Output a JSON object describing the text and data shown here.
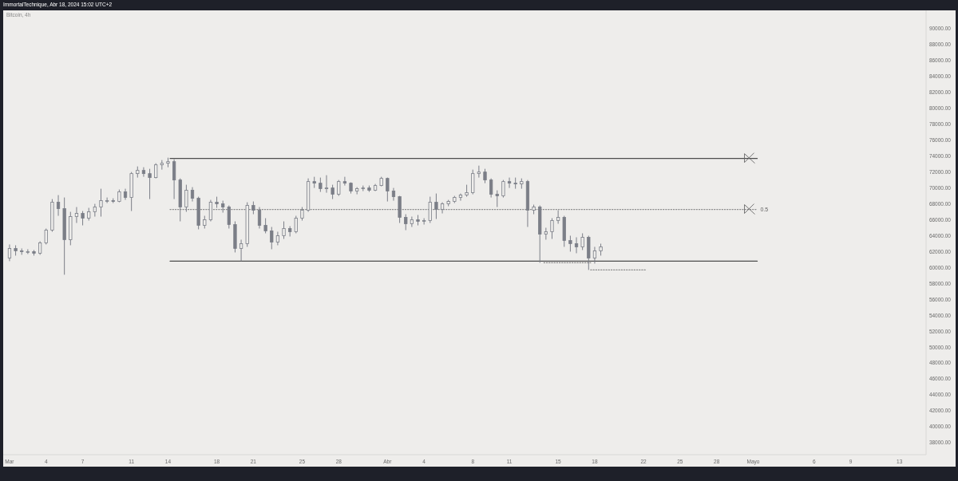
{
  "chart_data": {
    "type": "candlestick",
    "title": "Bitcoin, 4h",
    "annotations": [
      "ImmortalTechnique, Abr 18, 2024 15:02 UTC+2"
    ],
    "color": "#7b7e87",
    "x": [
      "2024-03-01T00:00",
      "2024-03-01T12:00",
      "2024-03-02T00:00",
      "2024-03-02T12:00",
      "2024-03-03T00:00",
      "2024-03-03T12:00",
      "2024-03-04T00:00",
      "2024-03-04T12:00",
      "2024-03-05T00:00",
      "2024-03-05T12:00",
      "2024-03-06T00:00",
      "2024-03-06T12:00",
      "2024-03-07T00:00",
      "2024-03-07T12:00",
      "2024-03-08T00:00",
      "2024-03-08T12:00",
      "2024-03-09T00:00",
      "2024-03-09T12:00",
      "2024-03-10T00:00",
      "2024-03-10T12:00",
      "2024-03-11T00:00",
      "2024-03-11T12:00",
      "2024-03-12T00:00",
      "2024-03-12T12:00",
      "2024-03-13T00:00",
      "2024-03-13T12:00",
      "2024-03-14T00:00",
      "2024-03-14T12:00",
      "2024-03-15T00:00",
      "2024-03-15T12:00",
      "2024-03-16T00:00",
      "2024-03-16T12:00",
      "2024-03-17T00:00",
      "2024-03-17T12:00",
      "2024-03-18T00:00",
      "2024-03-18T12:00",
      "2024-03-19T00:00",
      "2024-03-19T12:00",
      "2024-03-20T00:00",
      "2024-03-20T12:00",
      "2024-03-21T00:00",
      "2024-03-21T12:00",
      "2024-03-22T00:00",
      "2024-03-22T12:00",
      "2024-03-23T00:00",
      "2024-03-23T12:00",
      "2024-03-24T00:00",
      "2024-03-24T12:00",
      "2024-03-25T00:00",
      "2024-03-25T12:00",
      "2024-03-26T00:00",
      "2024-03-26T12:00",
      "2024-03-27T00:00",
      "2024-03-27T12:00",
      "2024-03-28T00:00",
      "2024-03-28T12:00",
      "2024-03-29T00:00",
      "2024-03-29T12:00",
      "2024-03-30T00:00",
      "2024-03-30T12:00",
      "2024-03-31T00:00",
      "2024-03-31T12:00",
      "2024-04-01T00:00",
      "2024-04-01T12:00",
      "2024-04-02T00:00",
      "2024-04-02T12:00",
      "2024-04-03T00:00",
      "2024-04-03T12:00",
      "2024-04-04T00:00",
      "2024-04-04T12:00",
      "2024-04-05T00:00",
      "2024-04-05T12:00",
      "2024-04-06T00:00",
      "2024-04-06T12:00",
      "2024-04-07T00:00",
      "2024-04-07T12:00",
      "2024-04-08T00:00",
      "2024-04-08T12:00",
      "2024-04-09T00:00",
      "2024-04-09T12:00",
      "2024-04-10T00:00",
      "2024-04-10T12:00",
      "2024-04-11T00:00",
      "2024-04-11T12:00",
      "2024-04-12T00:00",
      "2024-04-12T12:00",
      "2024-04-13T00:00",
      "2024-04-13T12:00",
      "2024-04-14T00:00",
      "2024-04-14T12:00",
      "2024-04-15T00:00",
      "2024-04-15T12:00",
      "2024-04-16T00:00",
      "2024-04-16T12:00",
      "2024-04-17T00:00",
      "2024-04-17T12:00",
      "2024-04-18T00:00",
      "2024-04-18T12:00"
    ],
    "ohlc": [
      [
        61200,
        62900,
        60800,
        62400
      ],
      [
        62400,
        62800,
        61500,
        62100
      ],
      [
        62100,
        62400,
        61600,
        62000
      ],
      [
        62000,
        62300,
        61700,
        62000
      ],
      [
        62000,
        62200,
        61500,
        61800
      ],
      [
        61800,
        63300,
        61600,
        63100
      ],
      [
        63100,
        64900,
        62900,
        64700
      ],
      [
        64700,
        68600,
        64500,
        68200
      ],
      [
        68200,
        69100,
        66500,
        67400
      ],
      [
        67400,
        68800,
        59100,
        63500
      ],
      [
        63500,
        67000,
        62800,
        66400
      ],
      [
        66400,
        67600,
        65600,
        66800
      ],
      [
        66800,
        67100,
        65300,
        66200
      ],
      [
        66200,
        67500,
        65900,
        67000
      ],
      [
        67000,
        68000,
        66400,
        67600
      ],
      [
        67600,
        69900,
        66400,
        68400
      ],
      [
        68400,
        68800,
        68100,
        68400
      ],
      [
        68400,
        68700,
        68100,
        68300
      ],
      [
        68300,
        69800,
        68200,
        69500
      ],
      [
        69500,
        69900,
        68500,
        68800
      ],
      [
        68800,
        72000,
        67100,
        71800
      ],
      [
        71800,
        72700,
        71300,
        72200
      ],
      [
        72200,
        72600,
        71400,
        71800
      ],
      [
        71800,
        72400,
        68600,
        71300
      ],
      [
        71300,
        73100,
        71200,
        72900
      ],
      [
        72900,
        73500,
        72300,
        73100
      ],
      [
        73100,
        73800,
        72600,
        73300
      ],
      [
        73300,
        73600,
        68600,
        71000
      ],
      [
        71000,
        71200,
        65800,
        67600
      ],
      [
        67600,
        70400,
        67000,
        69700
      ],
      [
        69700,
        70100,
        68300,
        68700
      ],
      [
        68700,
        68900,
        64800,
        65300
      ],
      [
        65300,
        66500,
        64900,
        66000
      ],
      [
        66000,
        68500,
        65800,
        68200
      ],
      [
        68200,
        68900,
        67500,
        68000
      ],
      [
        68000,
        68400,
        66900,
        67600
      ],
      [
        67600,
        67800,
        64900,
        65400
      ],
      [
        65400,
        65800,
        61900,
        62400
      ],
      [
        62400,
        63500,
        60800,
        63000
      ],
      [
        63000,
        68200,
        62600,
        67800
      ],
      [
        67800,
        68300,
        66700,
        67200
      ],
      [
        67200,
        67600,
        64900,
        65300
      ],
      [
        65300,
        66200,
        64300,
        64600
      ],
      [
        64600,
        65100,
        62300,
        63200
      ],
      [
        63200,
        64500,
        62800,
        64000
      ],
      [
        64000,
        65800,
        63600,
        64900
      ],
      [
        64900,
        65200,
        63900,
        64500
      ],
      [
        64500,
        66500,
        64300,
        66200
      ],
      [
        66200,
        67600,
        65900,
        67200
      ],
      [
        67200,
        71200,
        67000,
        70800
      ],
      [
        70800,
        71400,
        70000,
        70600
      ],
      [
        70600,
        71300,
        69500,
        69900
      ],
      [
        69900,
        71600,
        69400,
        70000
      ],
      [
        70000,
        70400,
        68600,
        69200
      ],
      [
        69200,
        71000,
        69000,
        70800
      ],
      [
        70800,
        71400,
        70300,
        70600
      ],
      [
        70600,
        70700,
        69300,
        69600
      ],
      [
        69600,
        70100,
        69200,
        69900
      ],
      [
        69900,
        70300,
        69600,
        70000
      ],
      [
        70000,
        70300,
        69500,
        69700
      ],
      [
        69700,
        70500,
        69600,
        70300
      ],
      [
        70300,
        71400,
        70200,
        71200
      ],
      [
        71200,
        71300,
        68300,
        69600
      ],
      [
        69600,
        70000,
        68400,
        68900
      ],
      [
        68900,
        69000,
        65600,
        66300
      ],
      [
        66300,
        66700,
        64700,
        65500
      ],
      [
        65500,
        66400,
        65100,
        66000
      ],
      [
        66000,
        66600,
        65300,
        65800
      ],
      [
        65800,
        66200,
        65400,
        65900
      ],
      [
        65900,
        68900,
        65600,
        68200
      ],
      [
        68200,
        69300,
        66100,
        67300
      ],
      [
        67300,
        68200,
        66800,
        68000
      ],
      [
        68000,
        68500,
        67700,
        68300
      ],
      [
        68300,
        69000,
        68100,
        68800
      ],
      [
        68800,
        69300,
        68400,
        69100
      ],
      [
        69100,
        70400,
        68900,
        69400
      ],
      [
        69400,
        72300,
        69200,
        71800
      ],
      [
        71800,
        72800,
        71300,
        72000
      ],
      [
        72000,
        72400,
        70600,
        71000
      ],
      [
        71000,
        71200,
        68800,
        69200
      ],
      [
        69200,
        69700,
        67600,
        69000
      ],
      [
        69000,
        71000,
        68800,
        70800
      ],
      [
        70800,
        71300,
        70000,
        70600
      ],
      [
        70600,
        71300,
        69900,
        70500
      ],
      [
        70500,
        71200,
        69900,
        70800
      ],
      [
        70800,
        71000,
        65100,
        67200
      ],
      [
        67200,
        67900,
        66700,
        67600
      ],
      [
        67600,
        67800,
        60600,
        64200
      ],
      [
        64200,
        65000,
        63500,
        64500
      ],
      [
        64500,
        66200,
        63600,
        65900
      ],
      [
        65900,
        67200,
        65500,
        66300
      ],
      [
        66300,
        66500,
        62600,
        63400
      ],
      [
        63400,
        64000,
        62000,
        63000
      ],
      [
        63000,
        63800,
        61800,
        62600
      ],
      [
        62600,
        64300,
        62200,
        63800
      ],
      [
        63800,
        64000,
        59700,
        61200
      ],
      [
        61200,
        62600,
        60500,
        62100
      ],
      [
        62100,
        63000,
        61500,
        62600
      ]
    ],
    "series": [
      {
        "type": "line",
        "color": "#4d4d4d",
        "line_style": "solid",
        "x": [
          "2024-03-14T04:00",
          "2024-05-01T08:00"
        ],
        "values": [
          73700,
          73700
        ]
      },
      {
        "type": "line",
        "name": "0.5",
        "color": "#8c8c8c",
        "line_style": "dotted",
        "x": [
          "2024-03-14T04:00",
          "2024-05-01T08:00"
        ],
        "values": [
          67300,
          67300
        ]
      },
      {
        "type": "line",
        "color": "#4d4d4d",
        "line_style": "solid",
        "x": [
          "2024-03-14T04:00",
          "2024-05-01T08:00"
        ],
        "values": [
          60800,
          60800
        ]
      },
      {
        "type": "line",
        "color": "#8c8c8c",
        "line_style": "dotted",
        "x": [
          "2024-04-13T20:00",
          "2024-04-17T16:00"
        ],
        "values": [
          60600,
          60600
        ]
      },
      {
        "type": "line",
        "color": "#8c8c8c",
        "line_style": "dotted",
        "x": [
          "2024-04-17T16:00",
          "2024-04-22T04:00"
        ],
        "values": [
          59700,
          59700
        ]
      }
    ],
    "xlim": [
      "2024-02-29T11:30",
      "2024-05-15T04:20"
    ],
    "xticks": [
      {
        "value": "2024-03-01",
        "label": "Mar"
      },
      {
        "value": "2024-03-04",
        "label": "4"
      },
      {
        "value": "2024-03-07",
        "label": "7"
      },
      {
        "value": "2024-03-11",
        "label": "11"
      },
      {
        "value": "2024-03-14",
        "label": "14"
      },
      {
        "value": "2024-03-18",
        "label": "18"
      },
      {
        "value": "2024-03-21",
        "label": "21"
      },
      {
        "value": "2024-03-25",
        "label": "25"
      },
      {
        "value": "2024-03-28",
        "label": "28"
      },
      {
        "value": "2024-04-01",
        "label": "Abr"
      },
      {
        "value": "2024-04-04",
        "label": "4"
      },
      {
        "value": "2024-04-08",
        "label": "8"
      },
      {
        "value": "2024-04-11",
        "label": "11"
      },
      {
        "value": "2024-04-15",
        "label": "15"
      },
      {
        "value": "2024-04-18",
        "label": "18"
      },
      {
        "value": "2024-04-22",
        "label": "22"
      },
      {
        "value": "2024-04-25",
        "label": "25"
      },
      {
        "value": "2024-04-28",
        "label": "28"
      },
      {
        "value": "2024-05-01",
        "label": "Mayo"
      },
      {
        "value": "2024-05-06",
        "label": "6"
      },
      {
        "value": "2024-05-09",
        "label": "9"
      },
      {
        "value": "2024-05-13",
        "label": "13"
      }
    ],
    "ylim": [
      36500,
      92300
    ],
    "yticks": [
      {
        "value": 38000,
        "label": "38000.00"
      },
      {
        "value": 40000,
        "label": "40000.00"
      },
      {
        "value": 42000,
        "label": "42000.00"
      },
      {
        "value": 44000,
        "label": "44000.00"
      },
      {
        "value": 46000,
        "label": "46000.00"
      },
      {
        "value": 48000,
        "label": "48000.00"
      },
      {
        "value": 50000,
        "label": "50000.00"
      },
      {
        "value": 52000,
        "label": "52000.00"
      },
      {
        "value": 54000,
        "label": "54000.00"
      },
      {
        "value": 56000,
        "label": "56000.00"
      },
      {
        "value": 58000,
        "label": "58000.00"
      },
      {
        "value": 60000,
        "label": "60000.00"
      },
      {
        "value": 62000,
        "label": "62000.00"
      },
      {
        "value": 64000,
        "label": "64000.00"
      },
      {
        "value": 66000,
        "label": "66000.00"
      },
      {
        "value": 68000,
        "label": "68000.00"
      },
      {
        "value": 70000,
        "label": "70000.00"
      },
      {
        "value": 72000,
        "label": "72000.00"
      },
      {
        "value": 74000,
        "label": "74000.00"
      },
      {
        "value": 76000,
        "label": "76000.00"
      },
      {
        "value": 78000,
        "label": "78000.00"
      },
      {
        "value": 80000,
        "label": "80000.00"
      },
      {
        "value": 82000,
        "label": "82000.00"
      },
      {
        "value": 84000,
        "label": "84000.00"
      },
      {
        "value": 86000,
        "label": "86000.00"
      },
      {
        "value": 88000,
        "label": "88000.00"
      },
      {
        "value": 90000,
        "label": "90000.00"
      }
    ]
  }
}
